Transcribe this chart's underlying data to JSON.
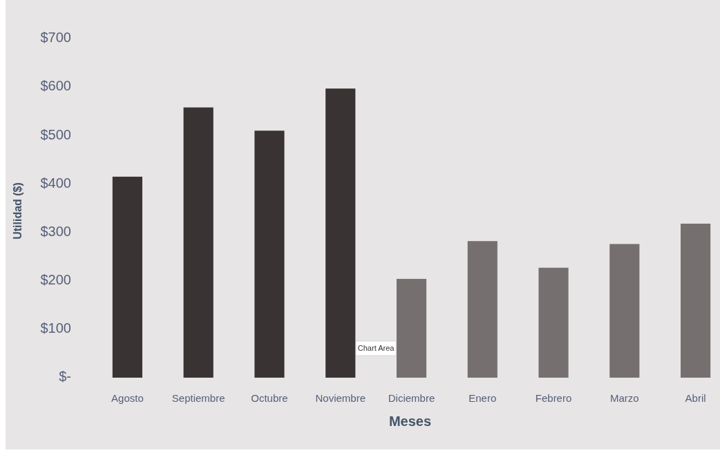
{
  "chart_data": {
    "type": "bar",
    "xlabel": "Meses",
    "ylabel": "Utilidad ($)",
    "categories": [
      "Agosto",
      "Septiembre",
      "Octubre",
      "Noviembre",
      "Diciembre",
      "Enero",
      "Febrero",
      "Marzo",
      "Abril"
    ],
    "values": [
      415,
      558,
      510,
      597,
      204,
      282,
      227,
      276,
      318
    ],
    "colors": [
      "#393433",
      "#393433",
      "#393433",
      "#393433",
      "#75706f",
      "#75706f",
      "#75706f",
      "#75706f",
      "#75706f"
    ],
    "ylim": [
      0,
      700
    ],
    "yticks": [
      {
        "value": 0,
        "label": "$-"
      },
      {
        "value": 100,
        "label": "$100"
      },
      {
        "value": 200,
        "label": "$200"
      },
      {
        "value": 300,
        "label": "$300"
      },
      {
        "value": 400,
        "label": "$400"
      },
      {
        "value": 500,
        "label": "$500"
      },
      {
        "value": 600,
        "label": "$600"
      },
      {
        "value": 700,
        "label": "$700"
      }
    ],
    "annotations": [
      "Chart Area"
    ]
  }
}
